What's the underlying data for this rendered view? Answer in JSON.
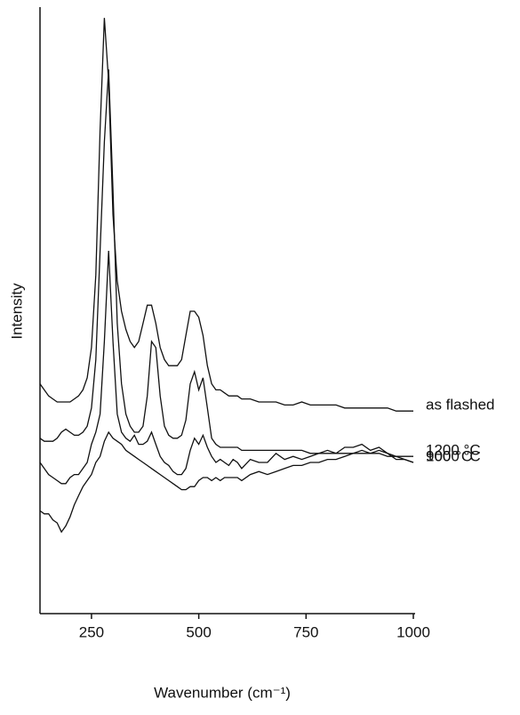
{
  "chart_data": {
    "type": "line",
    "xlabel": "Wavenumber (cm⁻¹)",
    "ylabel": "Intensity",
    "xlim": [
      130,
      1000
    ],
    "ylim": [
      0,
      100
    ],
    "xticks": [
      250,
      500,
      750,
      1000
    ],
    "x": [
      130,
      140,
      150,
      160,
      170,
      180,
      190,
      200,
      210,
      220,
      230,
      240,
      250,
      260,
      270,
      280,
      290,
      300,
      310,
      320,
      330,
      340,
      350,
      360,
      370,
      380,
      390,
      400,
      410,
      420,
      430,
      440,
      450,
      460,
      470,
      480,
      490,
      500,
      510,
      520,
      530,
      540,
      550,
      560,
      570,
      580,
      590,
      600,
      620,
      640,
      660,
      680,
      700,
      720,
      740,
      760,
      780,
      800,
      820,
      840,
      860,
      880,
      900,
      920,
      940,
      960,
      980,
      1000
    ],
    "series": [
      {
        "name": "as flashed",
        "color": "#111111",
        "values": [
          38,
          37,
          36,
          35.5,
          35,
          35,
          35,
          35,
          35.5,
          36,
          37,
          39,
          44,
          56,
          80,
          98.5,
          88,
          66,
          55,
          50,
          47,
          45,
          44,
          45,
          48,
          51,
          51,
          48,
          44,
          42,
          41,
          41,
          41,
          42,
          46,
          50,
          50,
          49,
          46,
          41,
          38,
          37,
          37,
          36.5,
          36,
          36,
          36,
          35.5,
          35.5,
          35,
          35,
          35,
          34.5,
          34.5,
          35,
          34.5,
          34.5,
          34.5,
          34.5,
          34,
          34,
          34,
          34,
          34,
          34,
          33.5,
          33.5,
          33.5
        ]
      },
      {
        "name": "1200 °C",
        "color": "#111111",
        "values": [
          29,
          28.5,
          28.5,
          28.5,
          29,
          30,
          30.5,
          30,
          29.5,
          29.5,
          30,
          31,
          34,
          42,
          60,
          78,
          90,
          70,
          48,
          38,
          33,
          31,
          30,
          30,
          31,
          36,
          45,
          44,
          36,
          31,
          29.5,
          29,
          29,
          29.5,
          32,
          38,
          40,
          37,
          39,
          34,
          29,
          28,
          27.5,
          27.5,
          27.5,
          27.5,
          27.5,
          27,
          27,
          27,
          27,
          27,
          27,
          27,
          27,
          26.5,
          26.5,
          26.5,
          26.5,
          26.5,
          26.5,
          26.5,
          26.5,
          26.5,
          26,
          26,
          26,
          26
        ]
      },
      {
        "name": "1000 °C",
        "color": "#111111",
        "values": [
          25,
          24,
          23,
          22.5,
          22,
          21.5,
          21.5,
          22.5,
          23,
          23,
          24,
          25,
          28,
          30,
          33,
          45,
          60,
          45,
          33,
          30,
          29,
          28.5,
          29.5,
          28,
          28,
          28.5,
          30,
          28,
          26,
          25,
          24.5,
          23.5,
          23,
          23,
          24,
          27,
          29,
          28,
          29.5,
          27.5,
          26,
          25,
          25.5,
          25,
          24.5,
          25.5,
          25,
          24,
          25.5,
          25,
          25,
          26.5,
          25.5,
          26,
          25.5,
          26,
          26.5,
          27,
          26.5,
          27.5,
          27.5,
          28,
          27,
          27.5,
          26.5,
          25.5,
          25.5,
          25
        ]
      },
      {
        "name": "900 °C",
        "color": "#111111",
        "values": [
          17,
          16.5,
          16.5,
          15.5,
          15,
          13.5,
          14.5,
          16,
          18,
          19.5,
          21,
          22,
          23,
          25,
          26,
          28.5,
          30,
          29,
          28.5,
          28,
          27,
          26.5,
          26,
          25.5,
          25,
          24.5,
          24,
          23.5,
          23,
          22.5,
          22,
          21.5,
          21,
          20.5,
          20.5,
          21,
          21,
          22,
          22.5,
          22.5,
          22,
          22.5,
          22,
          22.5,
          22.5,
          22.5,
          22.5,
          22,
          23,
          23.5,
          23,
          23.5,
          24,
          24.5,
          24.5,
          25,
          25,
          25.5,
          25.5,
          26,
          26.5,
          27,
          26.5,
          27,
          26.5,
          26,
          25.5,
          25
        ]
      }
    ]
  }
}
